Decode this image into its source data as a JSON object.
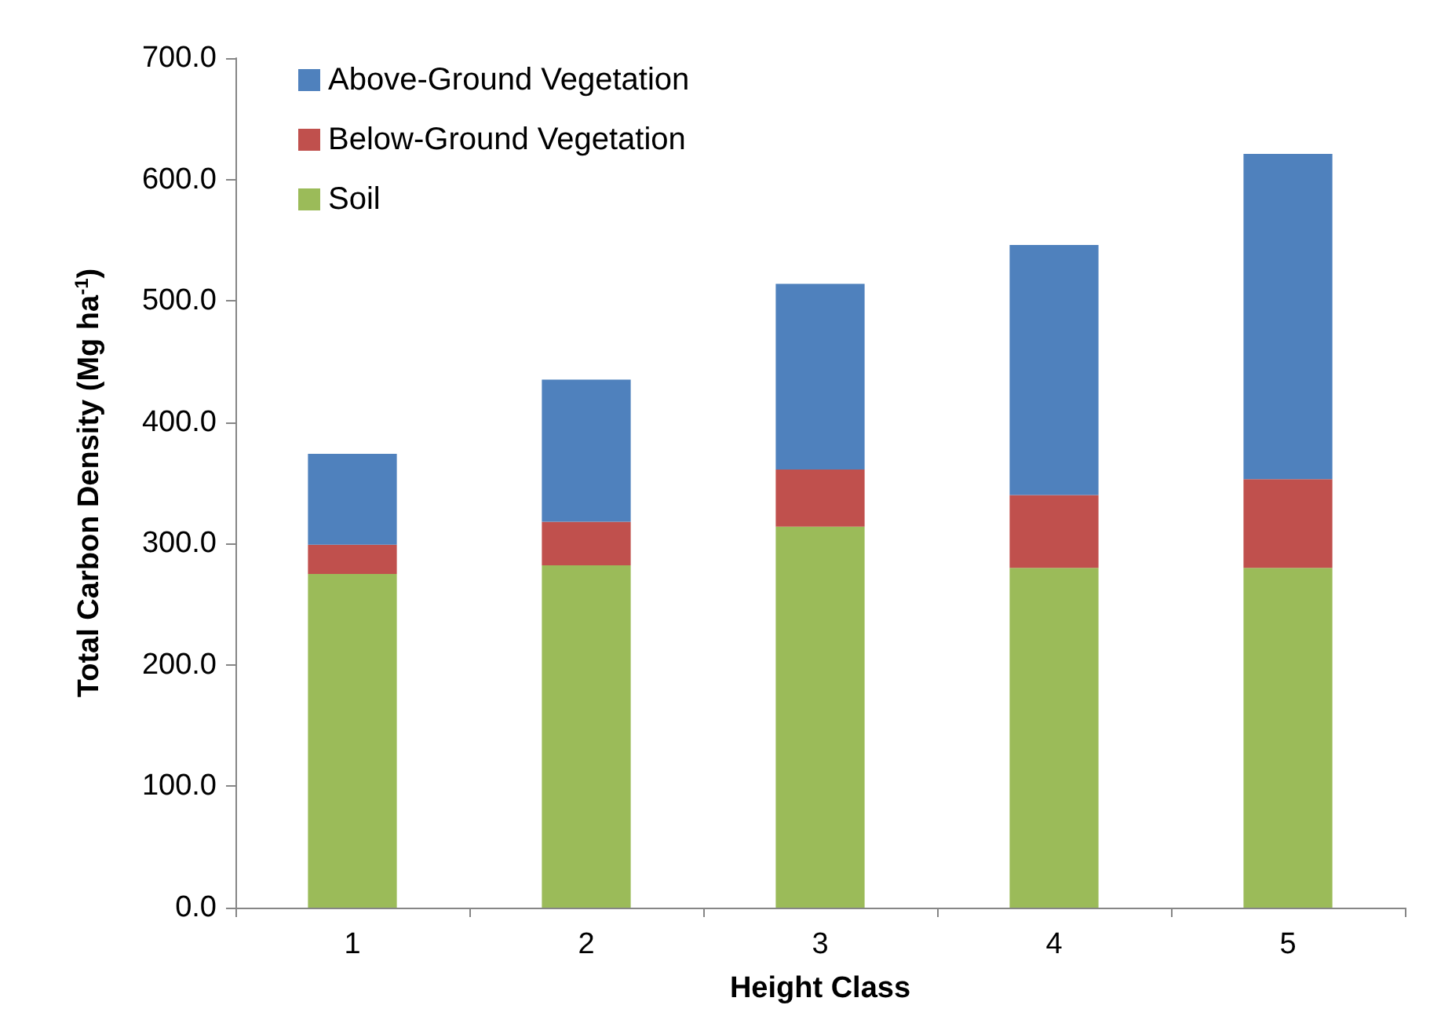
{
  "chart_data": {
    "type": "bar",
    "stacked": true,
    "xlabel": "Height Class",
    "ylabel": "Total Carbon Density (Mg ha$^{-1}$)",
    "categories": [
      "1",
      "2",
      "3",
      "4",
      "5"
    ],
    "series": [
      {
        "name": "Soil",
        "color": "#9bbb59",
        "values": [
          275,
          282,
          314,
          280,
          280
        ]
      },
      {
        "name": "Below-Ground Vegetation",
        "color": "#c0504d",
        "values": [
          24,
          36,
          47,
          60,
          73
        ]
      },
      {
        "name": "Above-Ground Vegetation",
        "color": "#4f81bd",
        "values": [
          75,
          117,
          153,
          206,
          268
        ]
      }
    ],
    "ylim": [
      0,
      700
    ],
    "yticks": [
      {
        "value": 0,
        "label": "0.0"
      },
      {
        "value": 100,
        "label": "100.0"
      },
      {
        "value": 200,
        "label": "200.0"
      },
      {
        "value": 300,
        "label": "300.0"
      },
      {
        "value": 400,
        "label": "400.0"
      },
      {
        "value": 500,
        "label": "500.0"
      },
      {
        "value": 600,
        "label": "600.0"
      },
      {
        "value": 700,
        "label": "700.0"
      }
    ],
    "grid": false,
    "legend": "top left"
  }
}
